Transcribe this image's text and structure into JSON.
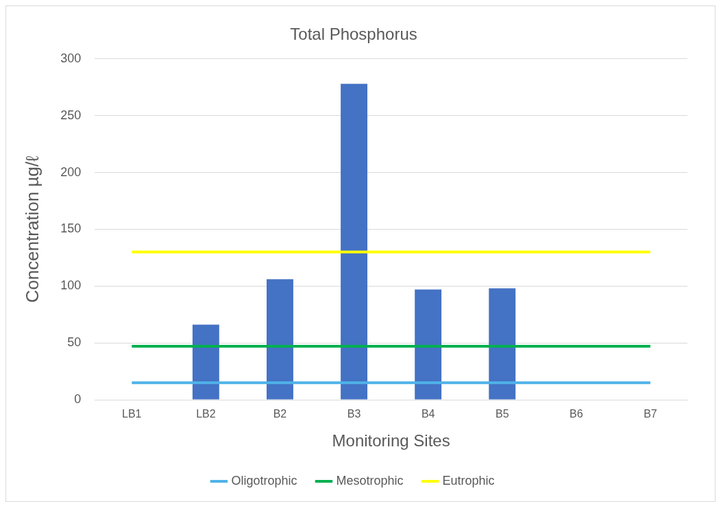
{
  "chart_data": {
    "type": "bar",
    "title": "Total Phosphorus",
    "xlabel": "Monitoring Sites",
    "ylabel": "Concentration µg/ℓ",
    "categories": [
      "LB1",
      "LB2",
      "B2",
      "B3",
      "B4",
      "B5",
      "B6",
      "B7"
    ],
    "series": [
      {
        "color": "#4472c4",
        "values": [
          null,
          66,
          106,
          278,
          97,
          98,
          null,
          null
        ]
      },
      {
        "name": "Oligotrophic",
        "type": "line",
        "color": "#4fb3e8",
        "values": [
          15,
          15,
          15,
          15,
          15,
          15,
          15,
          15
        ]
      },
      {
        "name": "Mesotrophic",
        "type": "line",
        "color": "#00b050",
        "values": [
          47,
          47,
          47,
          47,
          47,
          47,
          47,
          47
        ]
      },
      {
        "name": "Eutrophic",
        "type": "line",
        "color": "#ffff00",
        "values": [
          130,
          130,
          130,
          130,
          130,
          130,
          130,
          130
        ]
      }
    ],
    "ylim": [
      0,
      300
    ],
    "yticks": [
      0,
      50,
      100,
      150,
      200,
      250,
      300
    ],
    "grid": "y",
    "legend": "bottom",
    "marker": "none"
  }
}
